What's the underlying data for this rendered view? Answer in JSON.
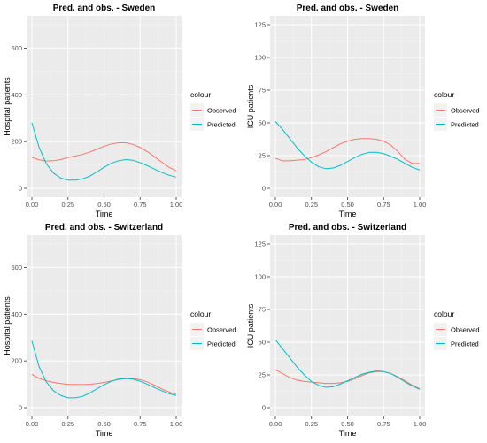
{
  "chart_data": [
    {
      "type": "line",
      "title": "Pred. and obs. - Sweden",
      "xlabel": "Time",
      "ylabel": "Hospital patients",
      "xlim": [
        0,
        1
      ],
      "ylim": [
        0,
        700
      ],
      "xticks": [
        "0.00",
        "0.25",
        "0.50",
        "0.75",
        "1.00"
      ],
      "yticks": [
        "0",
        "200",
        "400",
        "600"
      ],
      "legend_title": "colour",
      "legend_position": "right",
      "grid": true,
      "x": [
        0,
        0.05,
        0.1,
        0.15,
        0.2,
        0.25,
        0.3,
        0.35,
        0.4,
        0.45,
        0.5,
        0.55,
        0.6,
        0.65,
        0.7,
        0.75,
        0.8,
        0.85,
        0.9,
        0.95,
        1.0
      ],
      "series": [
        {
          "name": "Observed",
          "color": "#F8766D",
          "values": [
            133,
            122,
            117,
            118,
            123,
            132,
            138,
            145,
            155,
            167,
            180,
            190,
            195,
            195,
            188,
            175,
            157,
            135,
            112,
            90,
            75
          ]
        },
        {
          "name": "Predicted",
          "color": "#00BFC4",
          "values": [
            280,
            175,
            105,
            65,
            44,
            35,
            35,
            40,
            52,
            70,
            90,
            107,
            118,
            123,
            120,
            110,
            97,
            82,
            68,
            56,
            48
          ]
        }
      ]
    },
    {
      "type": "line",
      "title": "Pred. and obs. - Sweden",
      "xlabel": "Time",
      "ylabel": "ICU patients",
      "xlim": [
        0,
        1
      ],
      "ylim": [
        0,
        125
      ],
      "xticks": [
        "0.00",
        "0.25",
        "0.50",
        "0.75",
        "1.00"
      ],
      "yticks": [
        "0",
        "25",
        "50",
        "75",
        "100",
        "125"
      ],
      "legend_title": "colour",
      "legend_position": "right",
      "grid": true,
      "x": [
        0,
        0.05,
        0.1,
        0.15,
        0.2,
        0.25,
        0.3,
        0.35,
        0.4,
        0.45,
        0.5,
        0.55,
        0.6,
        0.65,
        0.7,
        0.75,
        0.8,
        0.85,
        0.9,
        0.95,
        1.0
      ],
      "series": [
        {
          "name": "Observed",
          "color": "#F8766D",
          "values": [
            23,
            21,
            21,
            21.5,
            22,
            23.5,
            25.5,
            28,
            31,
            34,
            36,
            37.5,
            38,
            38,
            37.5,
            36,
            33,
            28,
            22,
            19,
            19
          ]
        },
        {
          "name": "Predicted",
          "color": "#00BFC4",
          "values": [
            51,
            45,
            38,
            31,
            25,
            20,
            16.5,
            15,
            15.5,
            17.5,
            20.5,
            23.5,
            26,
            27.5,
            27.5,
            26.5,
            24.5,
            22,
            19,
            16,
            14
          ]
        }
      ]
    },
    {
      "type": "line",
      "title": "Pred. and obs. - Switzerland",
      "xlabel": "Time",
      "ylabel": "Hospital patients",
      "xlim": [
        0,
        1
      ],
      "ylim": [
        0,
        700
      ],
      "xticks": [
        "0.00",
        "0.25",
        "0.50",
        "0.75",
        "1.00"
      ],
      "yticks": [
        "0",
        "200",
        "400",
        "600"
      ],
      "legend_title": "colour",
      "legend_position": "right",
      "grid": true,
      "x": [
        0,
        0.05,
        0.1,
        0.15,
        0.2,
        0.25,
        0.3,
        0.35,
        0.4,
        0.45,
        0.5,
        0.55,
        0.6,
        0.65,
        0.7,
        0.75,
        0.8,
        0.85,
        0.9,
        0.95,
        1.0
      ],
      "series": [
        {
          "name": "Observed",
          "color": "#F8766D",
          "values": [
            142,
            125,
            115,
            108,
            103,
            100,
            99,
            99,
            100,
            103,
            108,
            114,
            120,
            124,
            124,
            120,
            110,
            96,
            80,
            67,
            57
          ]
        },
        {
          "name": "Predicted",
          "color": "#00BFC4",
          "values": [
            285,
            175,
            110,
            72,
            52,
            42,
            42,
            48,
            62,
            80,
            98,
            113,
            122,
            125,
            122,
            113,
            100,
            86,
            72,
            60,
            52
          ]
        }
      ]
    },
    {
      "type": "line",
      "title": "Pred. and obs. - Switzerland",
      "xlabel": "Time",
      "ylabel": "ICU patients",
      "xlim": [
        0,
        1
      ],
      "ylim": [
        0,
        125
      ],
      "xticks": [
        "0.00",
        "0.25",
        "0.50",
        "0.75",
        "1.00"
      ],
      "yticks": [
        "0",
        "25",
        "50",
        "75",
        "100",
        "125"
      ],
      "legend_title": "colour",
      "legend_position": "right",
      "grid": true,
      "x": [
        0,
        0.05,
        0.1,
        0.15,
        0.2,
        0.25,
        0.3,
        0.35,
        0.4,
        0.45,
        0.5,
        0.55,
        0.6,
        0.65,
        0.7,
        0.75,
        0.8,
        0.85,
        0.9,
        0.95,
        1.0
      ],
      "series": [
        {
          "name": "Observed",
          "color": "#F8766D",
          "values": [
            29,
            26,
            23,
            21,
            20,
            19.5,
            19,
            18.5,
            18.5,
            19,
            20,
            22,
            24.5,
            26.5,
            27.5,
            27.5,
            26,
            23.5,
            20.5,
            17,
            14.5
          ]
        },
        {
          "name": "Predicted",
          "color": "#00BFC4",
          "values": [
            52,
            45,
            38,
            31,
            25,
            20,
            17,
            15.5,
            16,
            18,
            20.5,
            23,
            25.5,
            27,
            28,
            27.5,
            26,
            23,
            19.5,
            16.5,
            14
          ]
        }
      ]
    }
  ]
}
